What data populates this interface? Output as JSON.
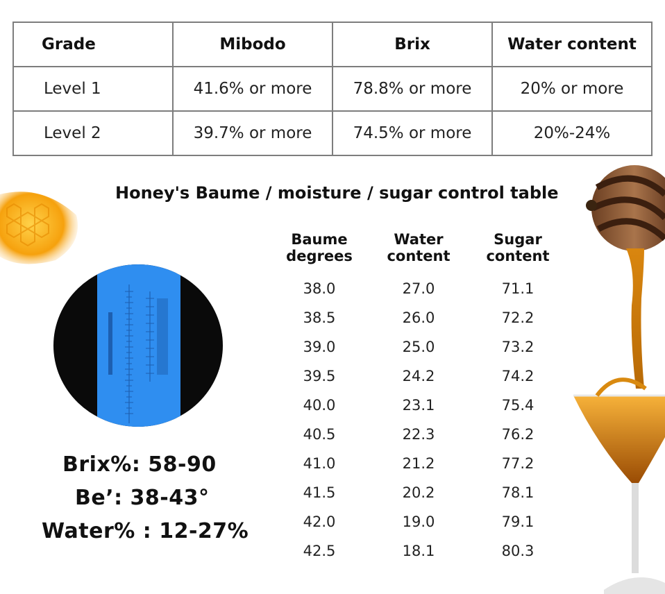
{
  "grade_table": {
    "headers": [
      "Grade",
      "Mibodo",
      "Brix",
      "Water content"
    ],
    "rows": [
      [
        "Level 1",
        "41.6% or more",
        "78.8% or more",
        "20% or more"
      ],
      [
        "Level 2",
        "39.7% or more",
        "74.5% or more",
        "20%-24%"
      ]
    ]
  },
  "control_table": {
    "title": "Honey's Baume / moisture / sugar control table",
    "headers": [
      {
        "line1": "Baume",
        "line2": "degrees"
      },
      {
        "line1": "Water",
        "line2": "content"
      },
      {
        "line1": "Sugar",
        "line2": "content"
      }
    ],
    "rows": [
      [
        "38.0",
        "27.0",
        "71.1"
      ],
      [
        "38.5",
        "26.0",
        "72.2"
      ],
      [
        "39.0",
        "25.0",
        "73.2"
      ],
      [
        "39.5",
        "24.2",
        "74.2"
      ],
      [
        "40.0",
        "23.1",
        "75.4"
      ],
      [
        "40.5",
        "22.3",
        "76.2"
      ],
      [
        "41.0",
        "21.2",
        "77.2"
      ],
      [
        "41.5",
        "20.2",
        "78.1"
      ],
      [
        "42.0",
        "19.0",
        "79.1"
      ],
      [
        "42.5",
        "18.1",
        "80.3"
      ]
    ]
  },
  "specs": {
    "brix": "Brix%:  58-90",
    "be": "Be’: 38-43°",
    "water": "Water% : 12-27%"
  },
  "colors": {
    "honey": "#f2a20c",
    "lens_blue": "#2f8ef0",
    "border": "#7d7d7d"
  }
}
